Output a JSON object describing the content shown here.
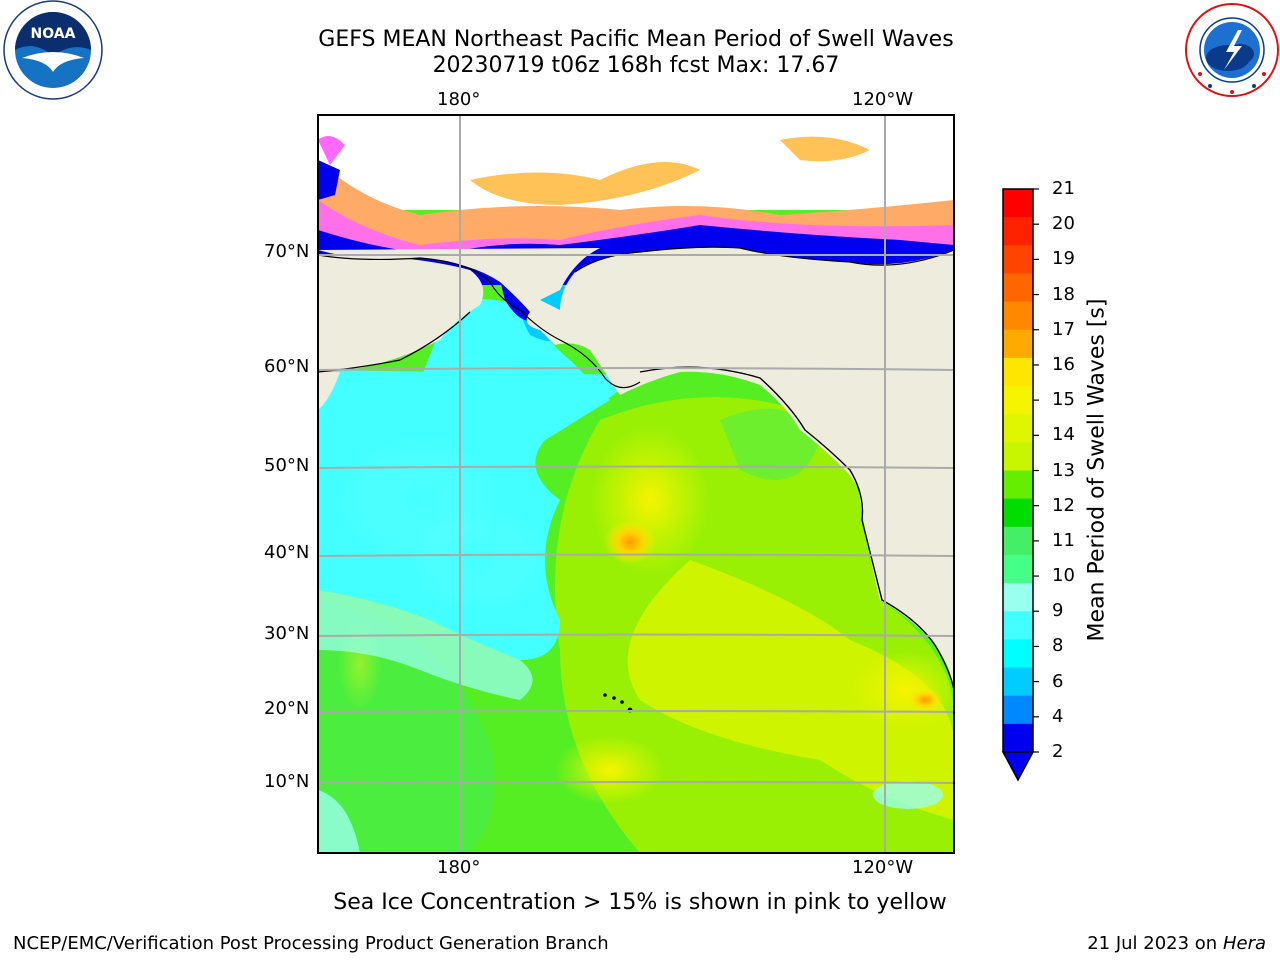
{
  "title_line1": "GEFS MEAN Northeast Pacific Mean Period of Swell Waves",
  "title_line2": "20230719 t06z 168h fcst   Max: 17.67",
  "lon_labels_top": [
    "180°",
    "120°W"
  ],
  "lon_labels_bottom": [
    "180°",
    "120°W"
  ],
  "lat_labels": [
    "70°N",
    "60°N",
    "50°N",
    "40°N",
    "30°N",
    "20°N",
    "10°N"
  ],
  "colorbar": {
    "title": "Mean Period of Swell Waves [s]",
    "ticks": [
      "21",
      "20",
      "19",
      "18",
      "17",
      "16",
      "15",
      "14",
      "13",
      "12",
      "11",
      "10",
      "9",
      "8",
      "6",
      "4",
      "2"
    ],
    "colors": [
      "#ff0000",
      "#ff2200",
      "#ff4400",
      "#ff6600",
      "#ff8800",
      "#ffaa00",
      "#ffe600",
      "#f5f500",
      "#e0f500",
      "#c8f500",
      "#66ee00",
      "#00dd00",
      "#44ee66",
      "#44ff88",
      "#99ffee",
      "#44ffff",
      "#00ffff",
      "#00ccff",
      "#0088ff",
      "#0000ee"
    ]
  },
  "caption": "Sea Ice Concentration > 15% is shown in pink to yellow",
  "footer_left": "NCEP/EMC/Verification Post Processing Product Generation Branch",
  "footer_right_text": "21 Jul 2023 on ",
  "footer_right_host": "Hera",
  "noaa_logo_text": "NOAA",
  "colors": {
    "land": "#eeecdc",
    "grid": "#aaaaaa",
    "ice_blue": "#0000ee",
    "ice_pink": "#ff44ff",
    "ice_orange": "#ffaa66"
  }
}
